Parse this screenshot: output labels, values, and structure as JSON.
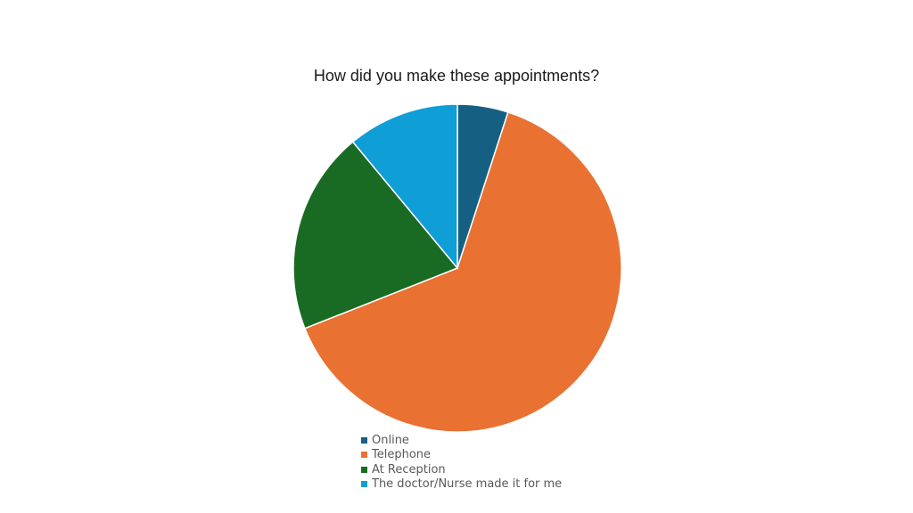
{
  "chart_data": {
    "type": "pie",
    "title": "How did you make these appointments?",
    "categories": [
      "Online",
      "Telephone",
      "At Reception",
      "The doctor/Nurse made it for me"
    ],
    "values": [
      5,
      64,
      20,
      11
    ],
    "colors": [
      "#156082",
      "#e97132",
      "#196b24",
      "#0f9ed5"
    ],
    "legend_position": "bottom"
  }
}
